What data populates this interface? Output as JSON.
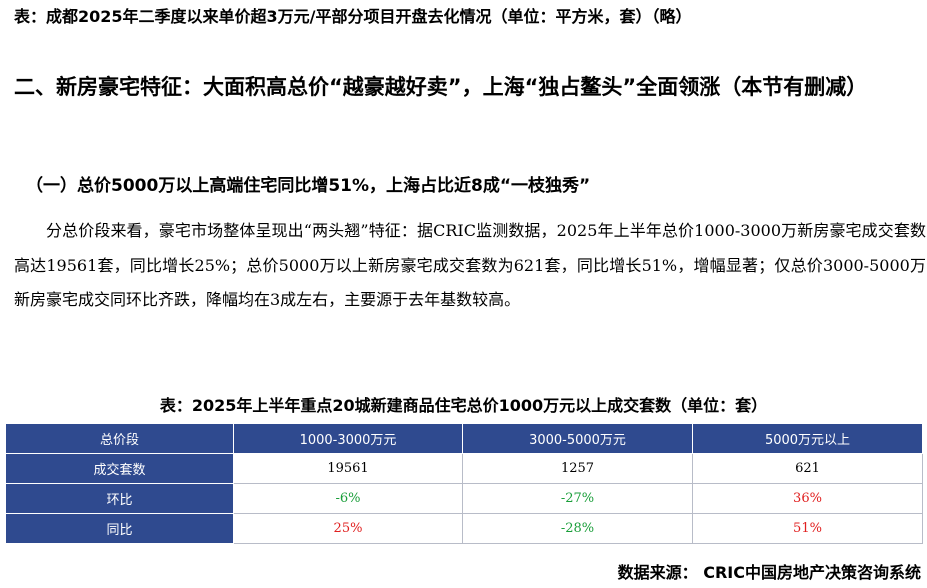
{
  "caption_top": "表：成都2025年二季度以来单价超3万元/平部分项目开盘去化情况（单位：平方米，套）（略）",
  "section_title": "二、新房豪宅特征：大面积高总价“越豪越好卖”，上海“独占鳌头”全面领涨（本节有删减）",
  "subsection_title": "（一）总价5000万以上高端住宅同比增51%，上海占比近8成“一枝独秀”",
  "body_paragraph": "分总价段来看，豪宅市场整体呈现出“两头翘”特征：据CRIC监测数据，2025年上半年总价1000-3000万新房豪宅成交套数高达19561套，同比增长25%；总价5000万以上新房豪宅成交套数为621套，同比增长51%，增幅显著；仅总价3000-5000万新房豪宅成交同环比齐跌，降幅均在3成左右，主要源于去年基数较高。",
  "table": {
    "caption": "表：2025年上半年重点20城新建商品住宅总价1000万元以上成交套数（单位：套）",
    "header": [
      "总价段",
      "1000-3000万元",
      "3000-5000万元",
      "5000万元以上"
    ],
    "rows": [
      {
        "label": "成交套数",
        "cells": [
          {
            "text": "19561",
            "color": "#000000"
          },
          {
            "text": "1257",
            "color": "#000000"
          },
          {
            "text": "621",
            "color": "#000000"
          }
        ]
      },
      {
        "label": "环比",
        "cells": [
          {
            "text": "-6%",
            "color": "#1a9e3a"
          },
          {
            "text": "-27%",
            "color": "#1a9e3a"
          },
          {
            "text": "36%",
            "color": "#e02020"
          }
        ]
      },
      {
        "label": "同比",
        "cells": [
          {
            "text": "25%",
            "color": "#e02020"
          },
          {
            "text": "-28%",
            "color": "#1a9e3a"
          },
          {
            "text": "51%",
            "color": "#e02020"
          }
        ]
      }
    ]
  },
  "source": "数据来源： CRIC中国房地产决策咨询系统",
  "colors": {
    "header_bg": "#2f4a8f",
    "positive": "#e02020",
    "negative": "#1a9e3a"
  }
}
